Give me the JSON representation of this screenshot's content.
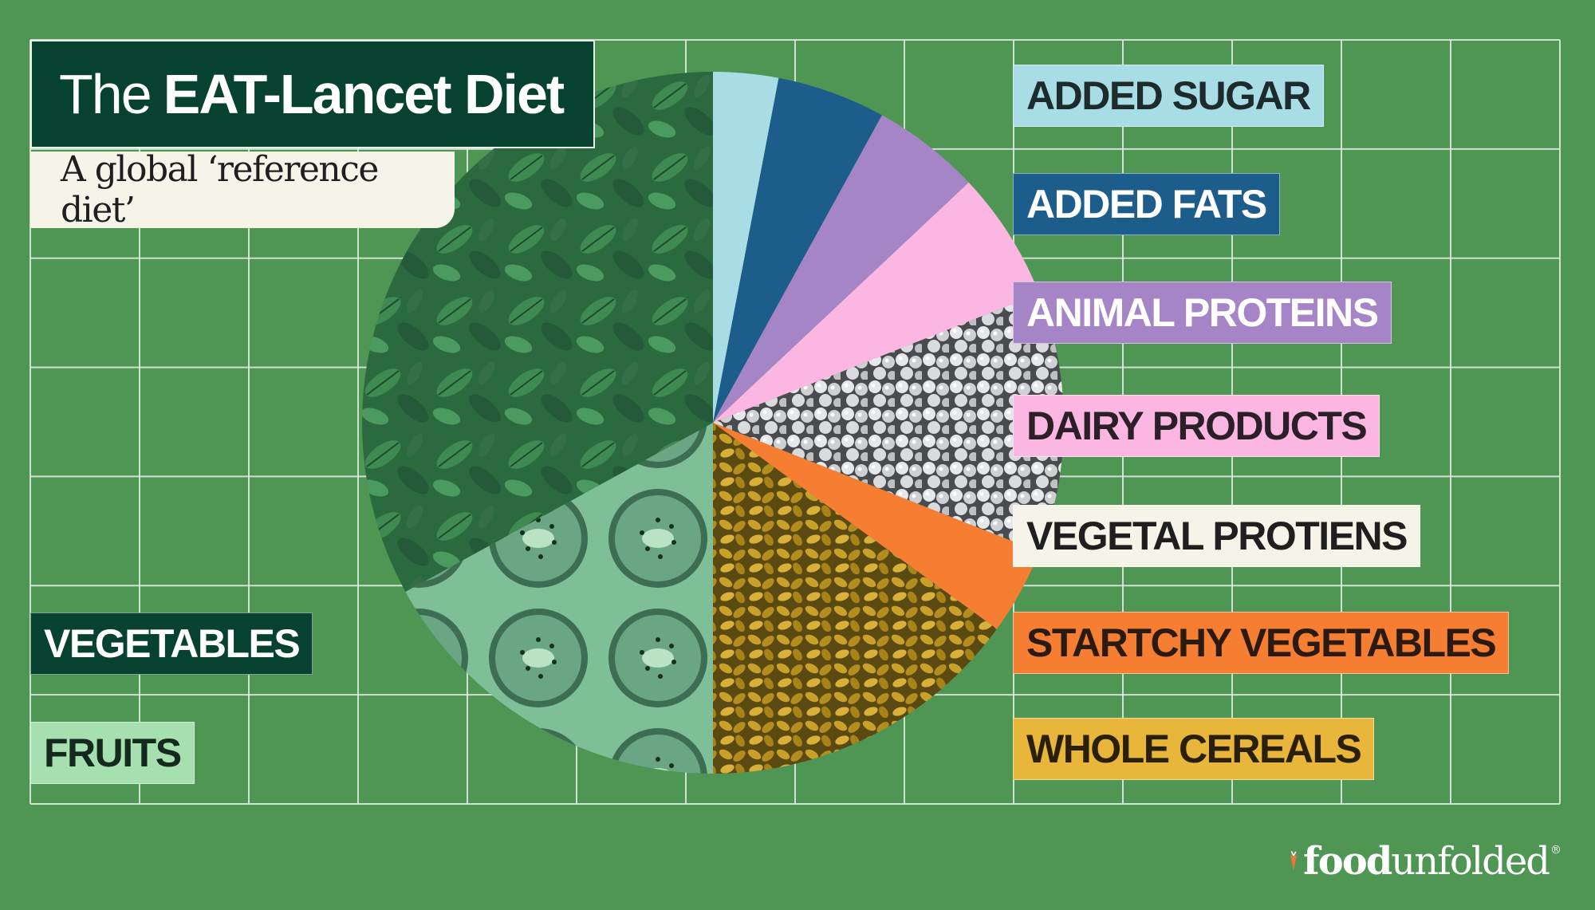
{
  "title": {
    "prefix": "The",
    "emphasis": "EAT-Lancet Diet"
  },
  "subtitle": "A global ‘reference diet’",
  "logo": {
    "food": "food",
    "unfolded": "unfolded",
    "trademark": "®"
  },
  "colors": {
    "background": "#4f9655",
    "grid_line": "#e6efe4",
    "title_bg": "#07412f",
    "subtitle_bg": "#f6f3e8"
  },
  "chart_data": {
    "type": "pie",
    "title": "The EAT-Lancet Diet",
    "subtitle": "A global ‘reference diet’",
    "slices": [
      {
        "label": "ADDED SUGAR",
        "value": 3,
        "color": "#a9dde6",
        "text_color": "#1d2b2c",
        "texture": "none"
      },
      {
        "label": "ADDED FATS",
        "value": 5,
        "color": "#1d5d8c",
        "text_color": "#ffffff",
        "texture": "none"
      },
      {
        "label": "ANIMAL PROTEINS",
        "value": 5,
        "color": "#a585c6",
        "text_color": "#ffffff",
        "texture": "none"
      },
      {
        "label": "DAIRY PRODUCTS",
        "value": 6,
        "color": "#fbb6e2",
        "text_color": "#2b1f28",
        "texture": "none"
      },
      {
        "label": "VEGETAL PROTIENS",
        "value": 12,
        "color": "#8f9094",
        "text_color": "#1f1f1f",
        "texture": "chickpeas"
      },
      {
        "label": "STARTCHY VEGETABLES",
        "value": 4,
        "color": "#f67e33",
        "text_color": "#2a1a10",
        "texture": "none"
      },
      {
        "label": "WHOLE CEREALS",
        "value": 15,
        "color": "#d4a81a",
        "text_color": "#2a2008",
        "texture": "grains"
      },
      {
        "label": "FRUITS",
        "value": 17,
        "color": "#a4d8b4",
        "text_color": "#142a1c",
        "texture": "kiwi"
      },
      {
        "label": "VEGETABLES",
        "value": 33,
        "color": "#2b6a3e",
        "text_color": "#ffffff",
        "texture": "spinach"
      }
    ],
    "label_colors": {
      "VEGETAL PROTIENS": "#f6f3e8",
      "STARTCHY VEGETABLES": "#f67e33",
      "WHOLE CEREALS": "#e9b63c",
      "FRUITS": "#a7e0b0",
      "VEGETABLES": "#07412f"
    },
    "start_angle_deg": 0,
    "direction": "clockwise",
    "legend": "labels beside the pie, right and bottom-left"
  }
}
